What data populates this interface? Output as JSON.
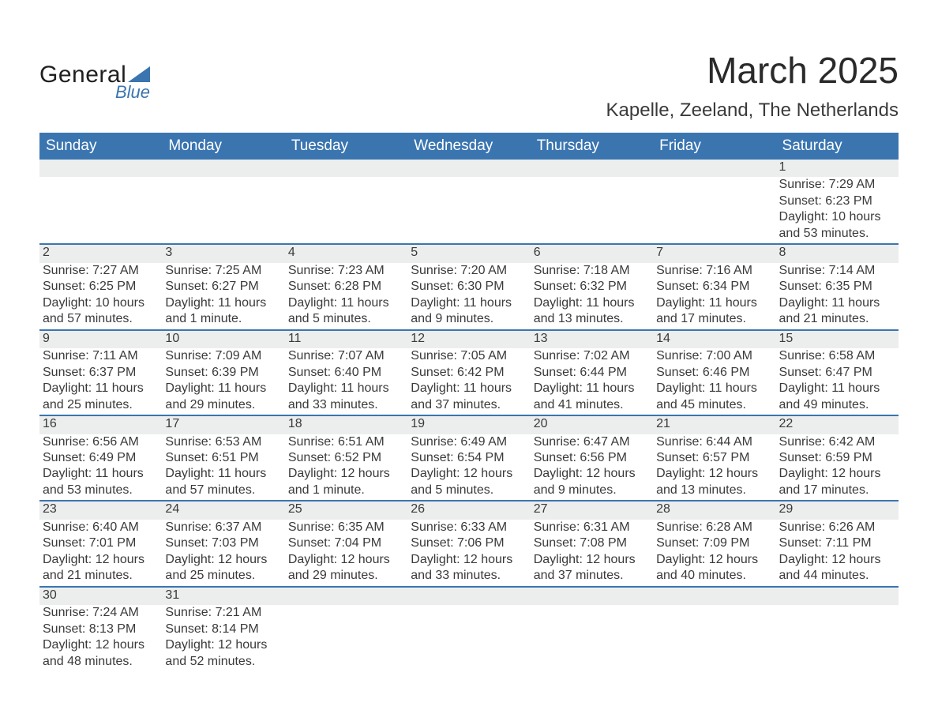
{
  "logo": {
    "text1": "General",
    "text2": "Blue"
  },
  "title": "March 2025",
  "location": "Kapelle, Zeeland, The Netherlands",
  "header_bg": "#3a75b0",
  "daynum_bg": "#eceded",
  "week_rule_color": "#3a75b0",
  "text_color": "#3a3a3a",
  "daynum_color": "#555555",
  "font_family": "Arial",
  "title_fontsize": 46,
  "location_fontsize": 24,
  "header_fontsize": 19,
  "cell_fontsize": 16,
  "weekdays": [
    "Sunday",
    "Monday",
    "Tuesday",
    "Wednesday",
    "Thursday",
    "Friday",
    "Saturday"
  ],
  "weeks": [
    [
      null,
      null,
      null,
      null,
      null,
      null,
      {
        "n": "1",
        "sr": "Sunrise: 7:29 AM",
        "ss": "Sunset: 6:23 PM",
        "d1": "Daylight: 10 hours",
        "d2": "and 53 minutes."
      }
    ],
    [
      {
        "n": "2",
        "sr": "Sunrise: 7:27 AM",
        "ss": "Sunset: 6:25 PM",
        "d1": "Daylight: 10 hours",
        "d2": "and 57 minutes."
      },
      {
        "n": "3",
        "sr": "Sunrise: 7:25 AM",
        "ss": "Sunset: 6:27 PM",
        "d1": "Daylight: 11 hours",
        "d2": "and 1 minute."
      },
      {
        "n": "4",
        "sr": "Sunrise: 7:23 AM",
        "ss": "Sunset: 6:28 PM",
        "d1": "Daylight: 11 hours",
        "d2": "and 5 minutes."
      },
      {
        "n": "5",
        "sr": "Sunrise: 7:20 AM",
        "ss": "Sunset: 6:30 PM",
        "d1": "Daylight: 11 hours",
        "d2": "and 9 minutes."
      },
      {
        "n": "6",
        "sr": "Sunrise: 7:18 AM",
        "ss": "Sunset: 6:32 PM",
        "d1": "Daylight: 11 hours",
        "d2": "and 13 minutes."
      },
      {
        "n": "7",
        "sr": "Sunrise: 7:16 AM",
        "ss": "Sunset: 6:34 PM",
        "d1": "Daylight: 11 hours",
        "d2": "and 17 minutes."
      },
      {
        "n": "8",
        "sr": "Sunrise: 7:14 AM",
        "ss": "Sunset: 6:35 PM",
        "d1": "Daylight: 11 hours",
        "d2": "and 21 minutes."
      }
    ],
    [
      {
        "n": "9",
        "sr": "Sunrise: 7:11 AM",
        "ss": "Sunset: 6:37 PM",
        "d1": "Daylight: 11 hours",
        "d2": "and 25 minutes."
      },
      {
        "n": "10",
        "sr": "Sunrise: 7:09 AM",
        "ss": "Sunset: 6:39 PM",
        "d1": "Daylight: 11 hours",
        "d2": "and 29 minutes."
      },
      {
        "n": "11",
        "sr": "Sunrise: 7:07 AM",
        "ss": "Sunset: 6:40 PM",
        "d1": "Daylight: 11 hours",
        "d2": "and 33 minutes."
      },
      {
        "n": "12",
        "sr": "Sunrise: 7:05 AM",
        "ss": "Sunset: 6:42 PM",
        "d1": "Daylight: 11 hours",
        "d2": "and 37 minutes."
      },
      {
        "n": "13",
        "sr": "Sunrise: 7:02 AM",
        "ss": "Sunset: 6:44 PM",
        "d1": "Daylight: 11 hours",
        "d2": "and 41 minutes."
      },
      {
        "n": "14",
        "sr": "Sunrise: 7:00 AM",
        "ss": "Sunset: 6:46 PM",
        "d1": "Daylight: 11 hours",
        "d2": "and 45 minutes."
      },
      {
        "n": "15",
        "sr": "Sunrise: 6:58 AM",
        "ss": "Sunset: 6:47 PM",
        "d1": "Daylight: 11 hours",
        "d2": "and 49 minutes."
      }
    ],
    [
      {
        "n": "16",
        "sr": "Sunrise: 6:56 AM",
        "ss": "Sunset: 6:49 PM",
        "d1": "Daylight: 11 hours",
        "d2": "and 53 minutes."
      },
      {
        "n": "17",
        "sr": "Sunrise: 6:53 AM",
        "ss": "Sunset: 6:51 PM",
        "d1": "Daylight: 11 hours",
        "d2": "and 57 minutes."
      },
      {
        "n": "18",
        "sr": "Sunrise: 6:51 AM",
        "ss": "Sunset: 6:52 PM",
        "d1": "Daylight: 12 hours",
        "d2": "and 1 minute."
      },
      {
        "n": "19",
        "sr": "Sunrise: 6:49 AM",
        "ss": "Sunset: 6:54 PM",
        "d1": "Daylight: 12 hours",
        "d2": "and 5 minutes."
      },
      {
        "n": "20",
        "sr": "Sunrise: 6:47 AM",
        "ss": "Sunset: 6:56 PM",
        "d1": "Daylight: 12 hours",
        "d2": "and 9 minutes."
      },
      {
        "n": "21",
        "sr": "Sunrise: 6:44 AM",
        "ss": "Sunset: 6:57 PM",
        "d1": "Daylight: 12 hours",
        "d2": "and 13 minutes."
      },
      {
        "n": "22",
        "sr": "Sunrise: 6:42 AM",
        "ss": "Sunset: 6:59 PM",
        "d1": "Daylight: 12 hours",
        "d2": "and 17 minutes."
      }
    ],
    [
      {
        "n": "23",
        "sr": "Sunrise: 6:40 AM",
        "ss": "Sunset: 7:01 PM",
        "d1": "Daylight: 12 hours",
        "d2": "and 21 minutes."
      },
      {
        "n": "24",
        "sr": "Sunrise: 6:37 AM",
        "ss": "Sunset: 7:03 PM",
        "d1": "Daylight: 12 hours",
        "d2": "and 25 minutes."
      },
      {
        "n": "25",
        "sr": "Sunrise: 6:35 AM",
        "ss": "Sunset: 7:04 PM",
        "d1": "Daylight: 12 hours",
        "d2": "and 29 minutes."
      },
      {
        "n": "26",
        "sr": "Sunrise: 6:33 AM",
        "ss": "Sunset: 7:06 PM",
        "d1": "Daylight: 12 hours",
        "d2": "and 33 minutes."
      },
      {
        "n": "27",
        "sr": "Sunrise: 6:31 AM",
        "ss": "Sunset: 7:08 PM",
        "d1": "Daylight: 12 hours",
        "d2": "and 37 minutes."
      },
      {
        "n": "28",
        "sr": "Sunrise: 6:28 AM",
        "ss": "Sunset: 7:09 PM",
        "d1": "Daylight: 12 hours",
        "d2": "and 40 minutes."
      },
      {
        "n": "29",
        "sr": "Sunrise: 6:26 AM",
        "ss": "Sunset: 7:11 PM",
        "d1": "Daylight: 12 hours",
        "d2": "and 44 minutes."
      }
    ],
    [
      {
        "n": "30",
        "sr": "Sunrise: 7:24 AM",
        "ss": "Sunset: 8:13 PM",
        "d1": "Daylight: 12 hours",
        "d2": "and 48 minutes."
      },
      {
        "n": "31",
        "sr": "Sunrise: 7:21 AM",
        "ss": "Sunset: 8:14 PM",
        "d1": "Daylight: 12 hours",
        "d2": "and 52 minutes."
      },
      null,
      null,
      null,
      null,
      null
    ]
  ]
}
